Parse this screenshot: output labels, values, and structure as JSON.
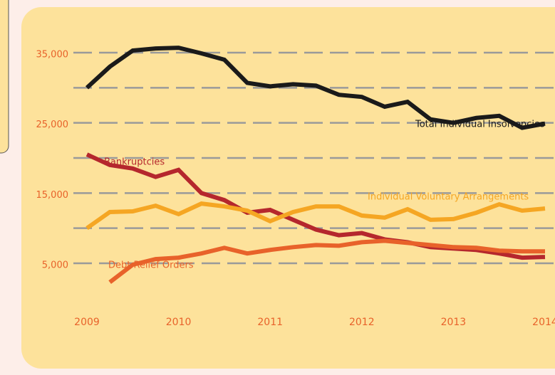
{
  "chart_data": {
    "type": "line",
    "x": [
      2009,
      2009.25,
      2009.5,
      2009.75,
      2010,
      2010.25,
      2010.5,
      2010.75,
      2011,
      2011.25,
      2011.5,
      2011.75,
      2012,
      2012.25,
      2012.5,
      2012.75,
      2013,
      2013.25,
      2013.5,
      2013.75,
      2014
    ],
    "series": [
      {
        "name": "Total Individual Insolvencies",
        "color": "#1a1a1a",
        "values": [
          30000,
          33000,
          35300,
          35600,
          35700,
          34900,
          34000,
          30700,
          30200,
          30500,
          30300,
          29000,
          28700,
          27300,
          28000,
          25500,
          25000,
          25700,
          26000,
          24300,
          24900
        ]
      },
      {
        "name": "Bankruptcies",
        "color": "#b5272d",
        "values": [
          20500,
          19000,
          18500,
          17300,
          18300,
          15000,
          14000,
          12200,
          12600,
          11200,
          9800,
          9000,
          9300,
          8400,
          8000,
          7300,
          7100,
          6900,
          6400,
          5800,
          5900
        ]
      },
      {
        "name": "Individual Voluntary Arrangements",
        "color": "#f5a623",
        "values": [
          10000,
          12300,
          12400,
          13200,
          12000,
          13500,
          13100,
          12500,
          11000,
          12300,
          13100,
          13100,
          11800,
          11500,
          12700,
          11200,
          11300,
          12200,
          13400,
          12500,
          12800
        ]
      },
      {
        "name": "Debt Relief Orders",
        "color": "#e8622a",
        "values": [
          null,
          2300,
          4800,
          5600,
          5800,
          6400,
          7200,
          6400,
          6900,
          7300,
          7600,
          7500,
          8000,
          8200,
          7900,
          7600,
          7300,
          7200,
          6800,
          6700,
          6700
        ]
      }
    ],
    "xlim": [
      2009,
      2014
    ],
    "xticks": [
      2009,
      2010,
      2011,
      2012,
      2013,
      2014
    ],
    "ylim": [
      0,
      38000
    ],
    "yticks": [
      {
        "value": 5000,
        "label": "5,000"
      },
      {
        "value": 15000,
        "label": "15,000"
      },
      {
        "value": 25000,
        "label": "25,000"
      },
      {
        "value": 35000,
        "label": "35,000"
      }
    ],
    "minor_yticks": [
      10000,
      20000,
      30000
    ],
    "grid": true
  }
}
